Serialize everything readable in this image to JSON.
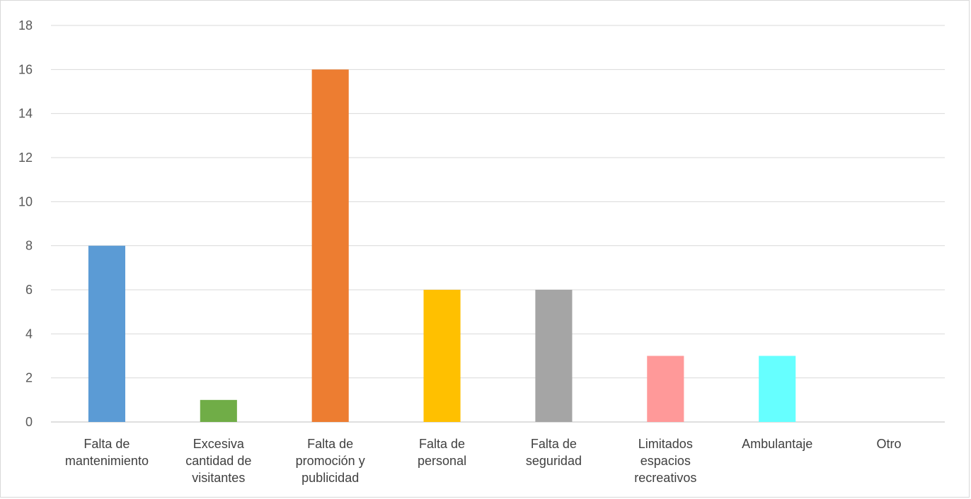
{
  "chart_data": {
    "type": "bar",
    "categories": [
      [
        "Falta de",
        "mantenimiento"
      ],
      [
        "Excesiva",
        "cantidad de",
        "visitantes"
      ],
      [
        "Falta de",
        "promoción y",
        "publicidad"
      ],
      [
        "Falta de",
        "personal"
      ],
      [
        "Falta de",
        "seguridad"
      ],
      [
        "Limitados",
        "espacios",
        "recreativos"
      ],
      [
        "Ambulantaje"
      ],
      [
        "Otro"
      ]
    ],
    "values": [
      8,
      1,
      16,
      6,
      6,
      3,
      3,
      0
    ],
    "colors": [
      "#5b9bd5",
      "#70ad47",
      "#ed7d31",
      "#ffc000",
      "#a5a5a5",
      "#ff9999",
      "#66ffff",
      "#4472c4"
    ],
    "ylim": [
      0,
      18
    ],
    "yticks": [
      0,
      2,
      4,
      6,
      8,
      10,
      12,
      14,
      16,
      18
    ],
    "grid": true,
    "legend": "none",
    "title": "",
    "xlabel": "",
    "ylabel": ""
  }
}
